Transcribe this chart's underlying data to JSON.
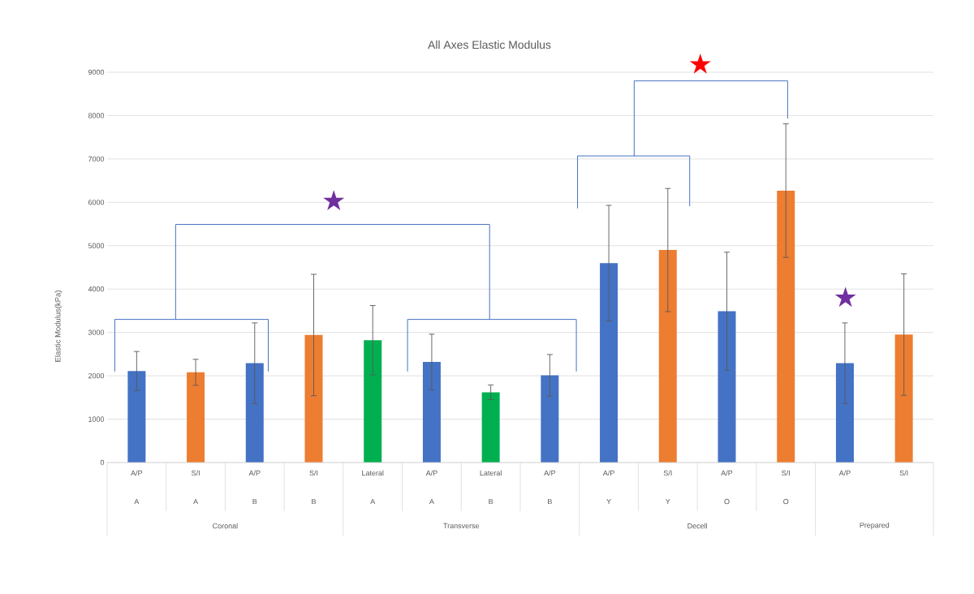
{
  "chart_data": {
    "type": "bar",
    "title": "All Axes Elastic Modulus",
    "ylabel": "Elastic Modulus(kPa)",
    "categories": [
      "A/P",
      "S/I",
      "A/P",
      "S/I",
      "Lateral",
      "A/P",
      "Lateral",
      "A/P",
      "A/P",
      "S/I",
      "A/P",
      "S/I",
      "A/P",
      "S/I"
    ],
    "values": [
      2110,
      2080,
      2290,
      2940,
      2820,
      2320,
      1620,
      2010,
      4600,
      4900,
      3490,
      6270,
      2290,
      2950
    ],
    "errors": [
      450,
      300,
      930,
      1400,
      800,
      640,
      170,
      480,
      1330,
      1420,
      1360,
      1540,
      930,
      1400
    ],
    "colors": [
      "#4472c4",
      "#ed7d31",
      "#4472c4",
      "#ed7d31",
      "#00b050",
      "#4472c4",
      "#00b050",
      "#4472c4",
      "#4472c4",
      "#ed7d31",
      "#4472c4",
      "#ed7d31",
      "#4472c4",
      "#ed7d31"
    ],
    "ylim": [
      0,
      9000
    ],
    "yticks": [
      0,
      1000,
      2000,
      3000,
      4000,
      5000,
      6000,
      7000,
      8000,
      9000
    ],
    "grid": "y",
    "annotations": [
      "A",
      "A",
      "B",
      "B",
      "A",
      "A",
      "B",
      "B",
      "Y",
      "Y",
      "O",
      "O",
      "Coronal",
      "Transverse",
      "Decell",
      "Prepared",
      "★",
      "★",
      "★"
    ]
  }
}
